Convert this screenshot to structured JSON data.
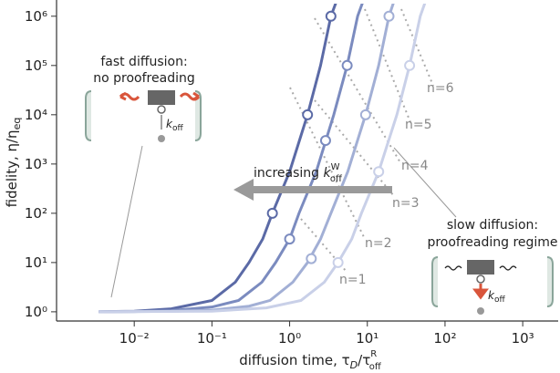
{
  "chart_data": {
    "type": "line",
    "log_x": true,
    "log_y": true,
    "xlim": [
      0.001,
      2860
    ],
    "ylim": [
      0.65,
      1800000
    ],
    "xticks": [
      {
        "value": 0.01,
        "label": "10⁻²"
      },
      {
        "value": 0.1,
        "label": "10⁻¹"
      },
      {
        "value": 1,
        "label": "10⁰"
      },
      {
        "value": 10,
        "label": "10¹"
      },
      {
        "value": 100,
        "label": "10²"
      },
      {
        "value": 1000,
        "label": "10³"
      }
    ],
    "yticks": [
      {
        "value": 1,
        "label": "10⁰"
      },
      {
        "value": 10,
        "label": "10¹"
      },
      {
        "value": 100,
        "label": "10²"
      },
      {
        "value": 1000,
        "label": "10³"
      },
      {
        "value": 10000,
        "label": "10⁴"
      },
      {
        "value": 100000,
        "label": "10⁵"
      },
      {
        "value": 1000000,
        "label": "10⁶"
      }
    ],
    "xlabel": {
      "main": "diffusion time, τ",
      "sub1": "D",
      "mid": "/τ",
      "sup": "R",
      "sub2": "off"
    },
    "ylabel": {
      "main": "fidelity, η/η",
      "sub": "eq"
    },
    "series": [
      {
        "color": "#5b6aa6",
        "x": [
          0.0035,
          0.01,
          0.03,
          0.1,
          0.2,
          0.3,
          0.45,
          0.6,
          1,
          1.7,
          2.5,
          3.4,
          4
        ],
        "values": [
          1,
          1.03,
          1.15,
          1.7,
          4,
          10,
          30,
          100,
          700,
          10000,
          100000,
          1000000,
          2000000
        ],
        "markers": {
          "x": [
            0.6,
            1.7,
            3.4
          ],
          "values": [
            100,
            10000,
            1000000
          ]
        }
      },
      {
        "color": "#7b8bbf",
        "x": [
          0.0035,
          0.01,
          0.03,
          0.1,
          0.22,
          0.44,
          0.66,
          1,
          1.32,
          2.2,
          3.7,
          5.5,
          7.5,
          8.8
        ],
        "values": [
          1,
          1.01,
          1.06,
          1.25,
          1.7,
          4,
          10,
          30,
          100,
          700,
          10000,
          100000,
          1000000,
          2000000
        ],
        "markers": {
          "x": [
            1,
            2.9,
            5.5
          ],
          "values": [
            30,
            3000,
            100000
          ]
        }
      },
      {
        "color": "#a2afd5",
        "x": [
          0.0035,
          0.03,
          0.1,
          0.3,
          0.56,
          1.1,
          1.7,
          2.5,
          3.4,
          5.6,
          9.5,
          14,
          19,
          22
        ],
        "values": [
          1,
          1.02,
          1.08,
          1.3,
          1.7,
          4,
          10,
          30,
          100,
          700,
          10000,
          100000,
          1000000,
          2000000
        ],
        "markers": {
          "x": [
            1.9,
            9.5,
            19
          ],
          "values": [
            12,
            10000,
            1000000
          ]
        }
      },
      {
        "color": "#c9d0e8",
        "x": [
          0.0035,
          0.1,
          0.5,
          1.4,
          2.8,
          4.2,
          6.3,
          8.4,
          14,
          24,
          35,
          48,
          56
        ],
        "values": [
          1,
          1.03,
          1.2,
          1.7,
          4,
          10,
          30,
          100,
          700,
          10000,
          100000,
          1000000,
          2000000
        ],
        "markers": {
          "x": [
            4.2,
            14,
            35
          ],
          "values": [
            10,
            700,
            100000
          ]
        }
      }
    ],
    "n_labels": [
      "n=1",
      "n=2",
      "n=3",
      "n=4",
      "n=5",
      "n=6"
    ],
    "fast": [
      "fast diffusion:",
      "no proofreading"
    ],
    "slow": [
      "slow diffusion:",
      "proofreading regime"
    ],
    "arrow": {
      "text": "increasing ",
      "k": "k",
      "sup": "W",
      "sub": "off"
    },
    "koff": {
      "k": "k",
      "sub": "off"
    }
  }
}
